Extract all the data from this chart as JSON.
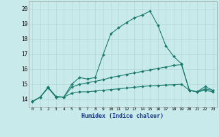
{
  "xlabel": "Humidex (Indice chaleur)",
  "bg_color": "#c8eaea",
  "grid_color": "#b8d8d8",
  "line_color": "#1a7a6e",
  "xlim": [
    -0.5,
    23.5
  ],
  "ylim": [
    13.5,
    20.5
  ],
  "xticks": [
    0,
    1,
    2,
    3,
    4,
    5,
    6,
    7,
    8,
    9,
    10,
    11,
    12,
    13,
    14,
    15,
    16,
    17,
    18,
    19,
    20,
    21,
    22,
    23
  ],
  "yticks": [
    14,
    15,
    16,
    17,
    18,
    19,
    20
  ],
  "series1_x": [
    0,
    1,
    2,
    3,
    4,
    5,
    6,
    7,
    8,
    9,
    10,
    11,
    12,
    13,
    14,
    15,
    16,
    17,
    18,
    19,
    20,
    21,
    22,
    23
  ],
  "series1_y": [
    13.85,
    14.15,
    14.8,
    14.2,
    14.15,
    15.0,
    15.45,
    15.35,
    15.45,
    16.95,
    18.35,
    18.75,
    19.1,
    19.4,
    19.6,
    19.85,
    18.9,
    17.55,
    16.85,
    16.35,
    14.6,
    14.5,
    14.85,
    14.6
  ],
  "series2_x": [
    0,
    1,
    2,
    3,
    4,
    5,
    6,
    7,
    8,
    9,
    10,
    11,
    12,
    13,
    14,
    15,
    16,
    17,
    18,
    19,
    20,
    21,
    22,
    23
  ],
  "series2_y": [
    13.85,
    14.15,
    14.8,
    14.15,
    14.15,
    14.8,
    15.0,
    15.1,
    15.2,
    15.3,
    15.45,
    15.55,
    15.65,
    15.75,
    15.85,
    15.95,
    16.05,
    16.15,
    16.25,
    16.3,
    14.6,
    14.5,
    14.7,
    14.6
  ],
  "series3_x": [
    0,
    1,
    2,
    3,
    4,
    5,
    6,
    7,
    8,
    9,
    10,
    11,
    12,
    13,
    14,
    15,
    16,
    17,
    18,
    19,
    20,
    21,
    22,
    23
  ],
  "series3_y": [
    13.85,
    14.15,
    14.75,
    14.15,
    14.15,
    14.4,
    14.5,
    14.5,
    14.55,
    14.6,
    14.65,
    14.7,
    14.75,
    14.8,
    14.85,
    14.9,
    14.92,
    14.95,
    14.97,
    15.0,
    14.6,
    14.5,
    14.6,
    14.5
  ]
}
